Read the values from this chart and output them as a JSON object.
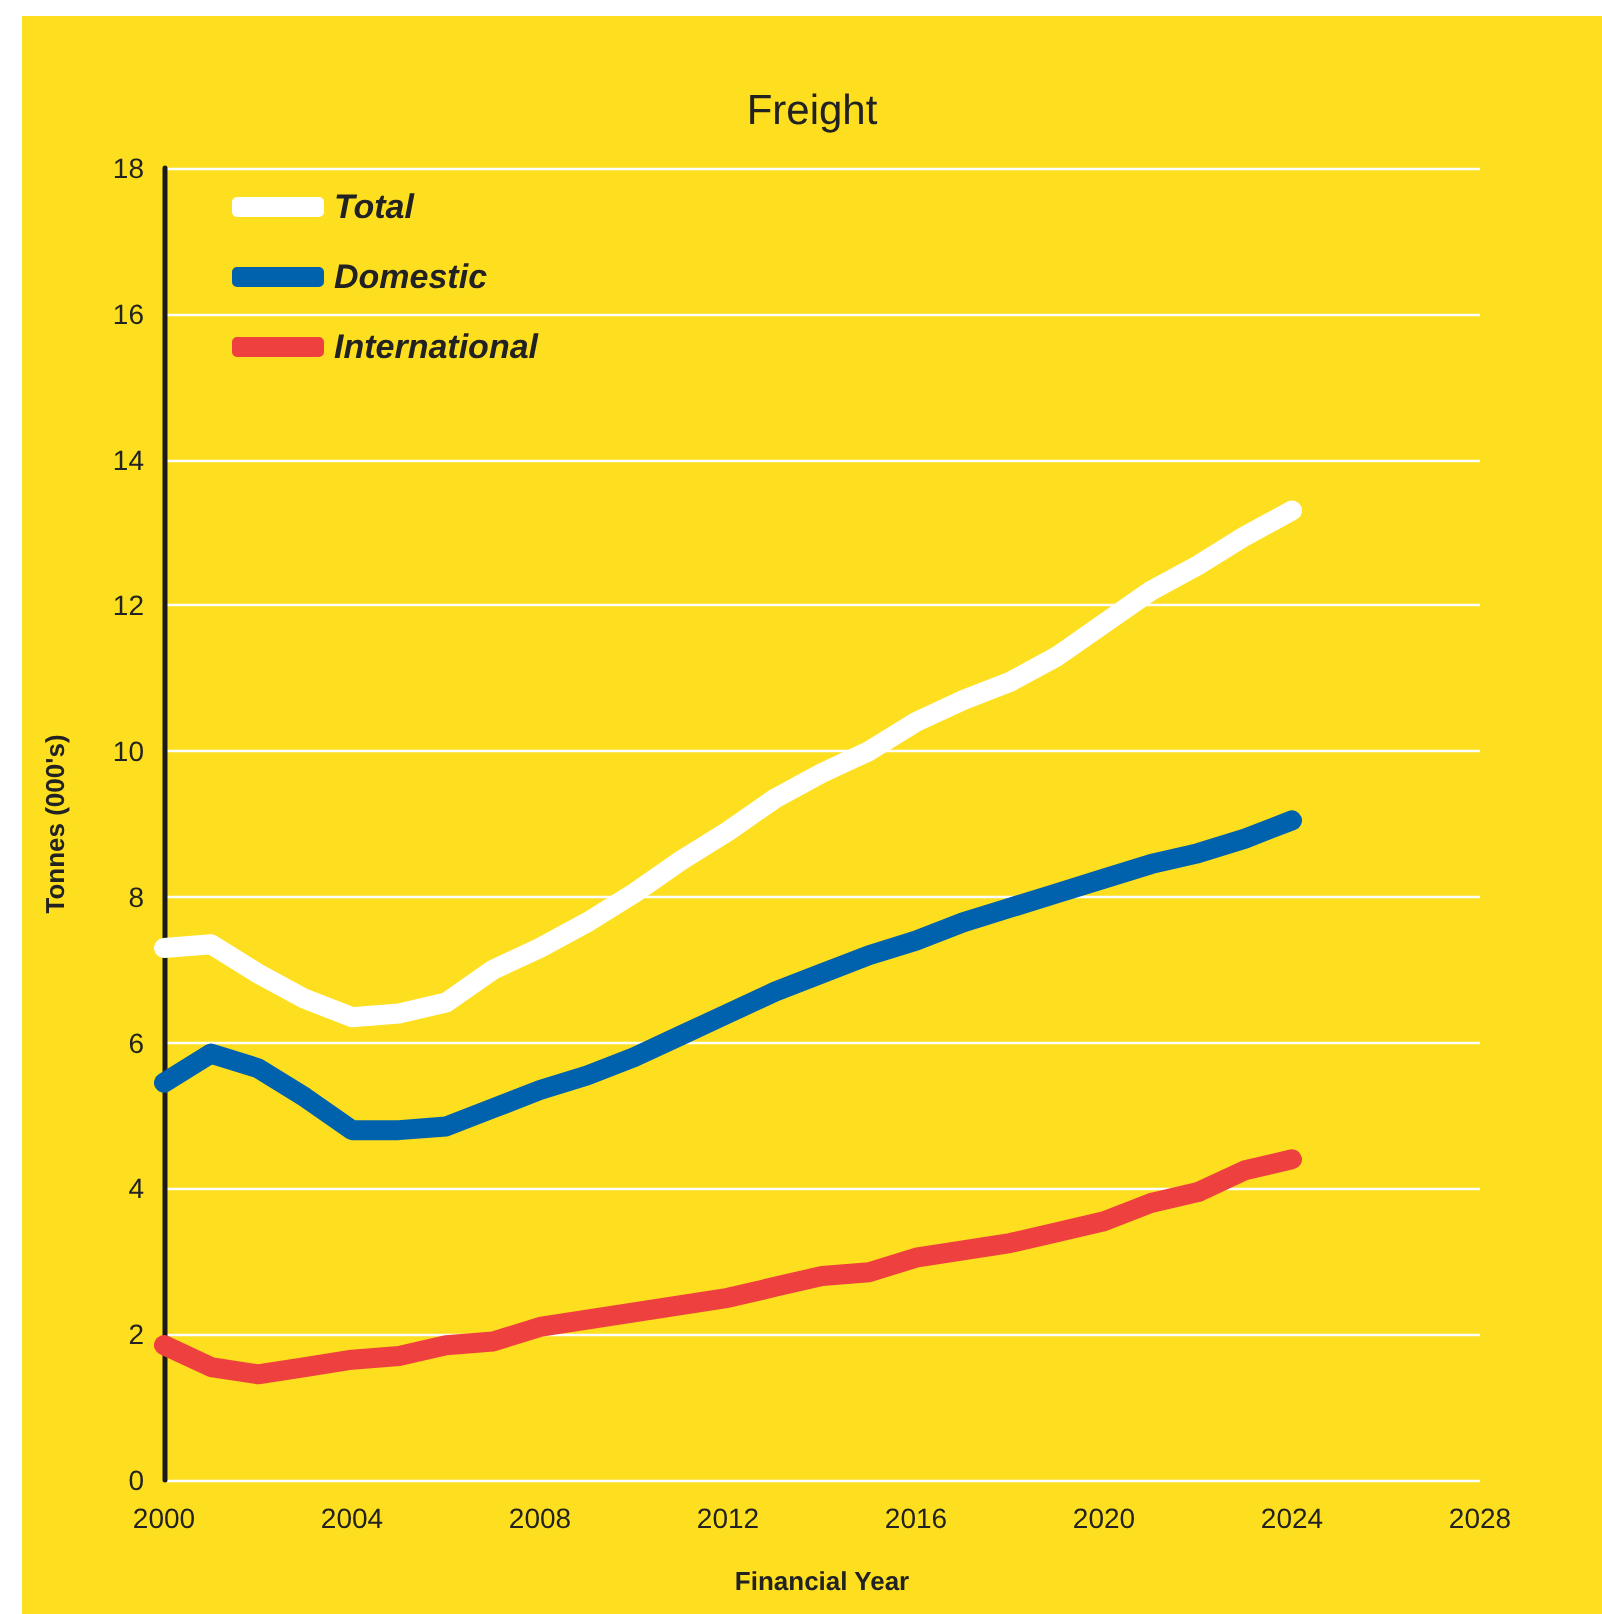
{
  "chart_data": {
    "type": "line",
    "title": "Freight",
    "xlabel": "Financial Year",
    "ylabel": "Tonnes (000's)",
    "x": [
      2000,
      2001,
      2002,
      2003,
      2004,
      2005,
      2006,
      2007,
      2008,
      2009,
      2010,
      2011,
      2012,
      2013,
      2014,
      2015,
      2016,
      2017,
      2018,
      2019,
      2020,
      2021,
      2022,
      2023,
      2024
    ],
    "series": [
      {
        "name": "Total",
        "color": "#ffffff",
        "values": [
          7.3,
          7.35,
          6.95,
          6.6,
          6.35,
          6.4,
          6.55,
          7.0,
          7.3,
          7.65,
          8.05,
          8.5,
          8.9,
          9.35,
          9.7,
          10.0,
          10.4,
          10.7,
          10.95,
          11.3,
          11.75,
          12.2,
          12.55,
          12.95,
          13.3
        ]
      },
      {
        "name": "Domestic",
        "color": "#0061ad",
        "values": [
          5.45,
          5.85,
          5.65,
          5.25,
          4.8,
          4.8,
          4.85,
          5.1,
          5.35,
          5.55,
          5.8,
          6.1,
          6.4,
          6.7,
          6.95,
          7.2,
          7.4,
          7.65,
          7.85,
          8.05,
          8.25,
          8.45,
          8.6,
          8.8,
          9.05
        ]
      },
      {
        "name": "International",
        "color": "#ef4040",
        "values": [
          1.85,
          1.55,
          1.45,
          1.55,
          1.65,
          1.7,
          1.85,
          1.9,
          2.1,
          2.2,
          2.3,
          2.4,
          2.5,
          2.65,
          2.8,
          2.85,
          3.05,
          3.15,
          3.25,
          3.4,
          3.55,
          3.8,
          3.95,
          4.25,
          4.4
        ]
      }
    ],
    "xlim": [
      2000,
      2028
    ],
    "xticks": [
      2000,
      2004,
      2008,
      2012,
      2016,
      2020,
      2024,
      2028
    ],
    "ylim": [
      0,
      18
    ],
    "yticks": [
      0,
      2,
      4,
      6,
      8,
      10,
      12,
      14,
      16,
      18
    ],
    "grid": "y",
    "legend": "top left",
    "line_style": "solid"
  }
}
